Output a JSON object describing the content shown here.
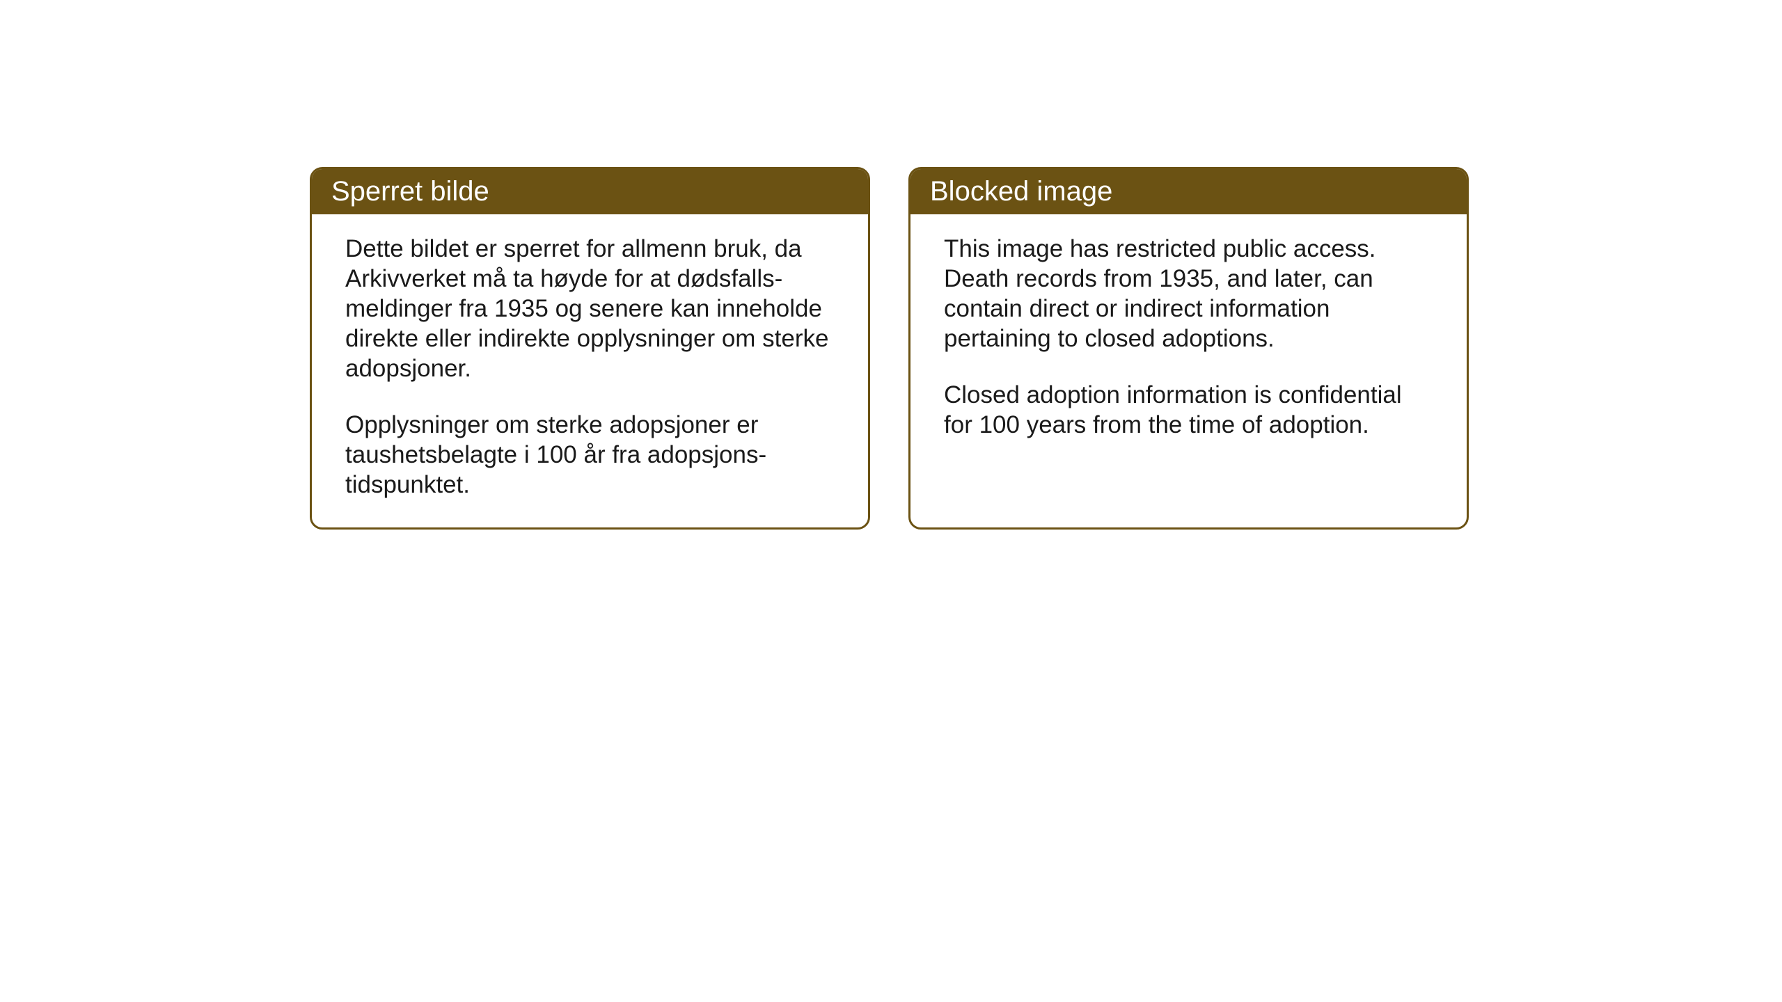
{
  "layout": {
    "background_color": "#ffffff",
    "box_border_color": "#6b5213",
    "box_header_bg": "#6b5213",
    "box_header_text_color": "#ffffff",
    "body_text_color": "#1a1a1a",
    "border_radius": 18,
    "header_fontsize": 40,
    "body_fontsize": 35
  },
  "left_box": {
    "title": "Sperret bilde",
    "paragraph1": "Dette bildet er sperret for allmenn bruk, da Arkivverket må ta høyde for at dødsfalls-meldinger fra 1935 og senere kan inneholde direkte eller indirekte opplysninger om sterke adopsjoner.",
    "paragraph2": "Opplysninger om sterke adopsjoner er taushetsbelagte i 100 år fra adopsjons-tidspunktet."
  },
  "right_box": {
    "title": "Blocked image",
    "paragraph1": "This image has restricted public access. Death records from 1935, and later, can contain direct or indirect information pertaining to closed adoptions.",
    "paragraph2": "Closed adoption information is confidential for 100 years from the time of adoption."
  }
}
